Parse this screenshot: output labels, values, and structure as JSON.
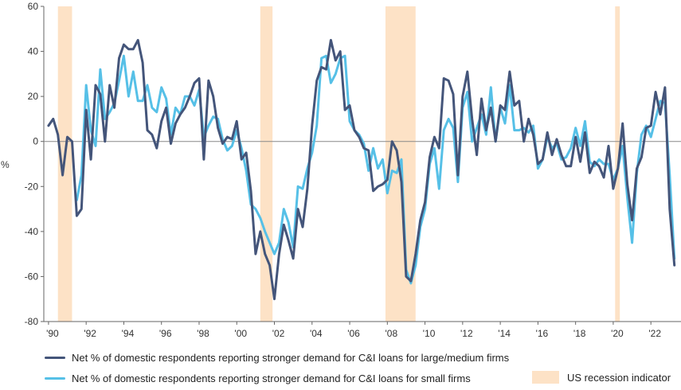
{
  "chart_data": {
    "type": "line",
    "ylabel": "%",
    "ylim": [
      -80,
      60
    ],
    "yticks": [
      -80,
      -60,
      -40,
      -20,
      0,
      20,
      40,
      60
    ],
    "xlim": [
      1989.75,
      2023.6
    ],
    "xticks": [
      {
        "x": 1990,
        "label": "'90"
      },
      {
        "x": 1992,
        "label": "'92"
      },
      {
        "x": 1994,
        "label": "'94"
      },
      {
        "x": 1996,
        "label": "'96"
      },
      {
        "x": 1998,
        "label": "'98"
      },
      {
        "x": 2000,
        "label": "'00"
      },
      {
        "x": 2002,
        "label": "'02"
      },
      {
        "x": 2004,
        "label": "'04"
      },
      {
        "x": 2006,
        "label": "'06"
      },
      {
        "x": 2008,
        "label": "'08"
      },
      {
        "x": 2010,
        "label": "'10"
      },
      {
        "x": 2012,
        "label": "'12"
      },
      {
        "x": 2014,
        "label": "'14"
      },
      {
        "x": 2016,
        "label": "'16"
      },
      {
        "x": 2018,
        "label": "'18"
      },
      {
        "x": 2020,
        "label": "'20"
      },
      {
        "x": 2022,
        "label": "'22"
      }
    ],
    "recessions": [
      [
        1990.5,
        1991.25
      ],
      [
        2001.25,
        2001.9
      ],
      [
        2007.9,
        2009.5
      ],
      [
        2020.1,
        2020.35
      ]
    ],
    "series": [
      {
        "name": "Net % of domestic respondents reporting stronger demand for C&I loans for large/medium firms",
        "color": "#44557a",
        "points": [
          [
            1990.0,
            7
          ],
          [
            1990.25,
            10
          ],
          [
            1990.5,
            3
          ],
          [
            1990.75,
            -15
          ],
          [
            1991.0,
            2
          ],
          [
            1991.25,
            0
          ],
          [
            1991.5,
            -33
          ],
          [
            1991.75,
            -30
          ],
          [
            1992.0,
            14
          ],
          [
            1992.25,
            -8
          ],
          [
            1992.5,
            25
          ],
          [
            1992.75,
            21
          ],
          [
            1993.0,
            0
          ],
          [
            1993.25,
            25
          ],
          [
            1993.5,
            15
          ],
          [
            1993.75,
            37
          ],
          [
            1994.0,
            43
          ],
          [
            1994.25,
            41
          ],
          [
            1994.5,
            41
          ],
          [
            1994.75,
            45
          ],
          [
            1995.0,
            35
          ],
          [
            1995.25,
            5
          ],
          [
            1995.5,
            3
          ],
          [
            1995.75,
            -3
          ],
          [
            1996.0,
            9
          ],
          [
            1996.25,
            15
          ],
          [
            1996.5,
            -1
          ],
          [
            1996.75,
            8
          ],
          [
            1997.0,
            12
          ],
          [
            1997.25,
            15
          ],
          [
            1997.5,
            20
          ],
          [
            1997.75,
            26
          ],
          [
            1998.0,
            28
          ],
          [
            1998.25,
            -8
          ],
          [
            1998.5,
            27
          ],
          [
            1998.75,
            20
          ],
          [
            1999.0,
            6
          ],
          [
            1999.25,
            -1
          ],
          [
            1999.5,
            2
          ],
          [
            1999.75,
            1
          ],
          [
            2000.0,
            9
          ],
          [
            2000.25,
            -8
          ],
          [
            2000.5,
            -5
          ],
          [
            2000.75,
            -22
          ],
          [
            2001.0,
            -50
          ],
          [
            2001.25,
            -40
          ],
          [
            2001.5,
            -50
          ],
          [
            2001.75,
            -55
          ],
          [
            2002.0,
            -70
          ],
          [
            2002.25,
            -50
          ],
          [
            2002.5,
            -37
          ],
          [
            2002.75,
            -44
          ],
          [
            2003.0,
            -52
          ],
          [
            2003.25,
            -30
          ],
          [
            2003.5,
            -38
          ],
          [
            2003.75,
            -21
          ],
          [
            2004.0,
            7
          ],
          [
            2004.25,
            27
          ],
          [
            2004.5,
            33
          ],
          [
            2004.75,
            32
          ],
          [
            2005.0,
            45
          ],
          [
            2005.25,
            36
          ],
          [
            2005.5,
            40
          ],
          [
            2005.75,
            14
          ],
          [
            2006.0,
            16
          ],
          [
            2006.25,
            5
          ],
          [
            2006.5,
            2
          ],
          [
            2006.75,
            -3
          ],
          [
            2007.0,
            -4
          ],
          [
            2007.25,
            -22
          ],
          [
            2007.5,
            -20
          ],
          [
            2007.75,
            -19
          ],
          [
            2008.0,
            -17
          ],
          [
            2008.25,
            0
          ],
          [
            2008.5,
            -4
          ],
          [
            2008.75,
            -18
          ],
          [
            2009.0,
            -60
          ],
          [
            2009.25,
            -62
          ],
          [
            2009.5,
            -50
          ],
          [
            2009.75,
            -35
          ],
          [
            2010.0,
            -27
          ],
          [
            2010.25,
            -7
          ],
          [
            2010.5,
            2
          ],
          [
            2010.75,
            -3
          ],
          [
            2011.0,
            28
          ],
          [
            2011.25,
            27
          ],
          [
            2011.5,
            21
          ],
          [
            2011.75,
            -15
          ],
          [
            2012.0,
            20
          ],
          [
            2012.25,
            31
          ],
          [
            2012.5,
            10
          ],
          [
            2012.75,
            -6
          ],
          [
            2013.0,
            19
          ],
          [
            2013.25,
            5
          ],
          [
            2013.5,
            15
          ],
          [
            2013.75,
            0
          ],
          [
            2014.0,
            16
          ],
          [
            2014.25,
            14
          ],
          [
            2014.5,
            31
          ],
          [
            2014.75,
            16
          ],
          [
            2015.0,
            18
          ],
          [
            2015.25,
            0
          ],
          [
            2015.5,
            10
          ],
          [
            2015.75,
            3
          ],
          [
            2016.0,
            -10
          ],
          [
            2016.25,
            -8
          ],
          [
            2016.5,
            4
          ],
          [
            2016.75,
            -6
          ],
          [
            2017.0,
            1
          ],
          [
            2017.25,
            -6
          ],
          [
            2017.5,
            -11
          ],
          [
            2017.75,
            -11
          ],
          [
            2018.0,
            2
          ],
          [
            2018.25,
            -9
          ],
          [
            2018.5,
            4
          ],
          [
            2018.75,
            -14
          ],
          [
            2019.0,
            -9
          ],
          [
            2019.25,
            -11
          ],
          [
            2019.5,
            -16
          ],
          [
            2019.75,
            -2
          ],
          [
            2020.0,
            -21
          ],
          [
            2020.25,
            -12
          ],
          [
            2020.5,
            8
          ],
          [
            2020.75,
            -19
          ],
          [
            2021.0,
            -35
          ],
          [
            2021.25,
            -12
          ],
          [
            2021.5,
            -7
          ],
          [
            2021.75,
            6
          ],
          [
            2022.0,
            7
          ],
          [
            2022.25,
            22
          ],
          [
            2022.5,
            12
          ],
          [
            2022.75,
            24
          ],
          [
            2023.0,
            -30
          ],
          [
            2023.25,
            -55
          ]
        ]
      },
      {
        "name": "Net % of domestic respondents reporting stronger demand for C&I loans for small firms",
        "color": "#56c0e7",
        "points": [
          [
            1991.5,
            -26
          ],
          [
            1991.75,
            -15
          ],
          [
            1992.0,
            25
          ],
          [
            1992.25,
            5
          ],
          [
            1992.5,
            -2
          ],
          [
            1992.75,
            32
          ],
          [
            1993.0,
            10
          ],
          [
            1993.25,
            13
          ],
          [
            1993.5,
            17
          ],
          [
            1993.75,
            27
          ],
          [
            1994.0,
            38
          ],
          [
            1994.25,
            20
          ],
          [
            1994.5,
            31
          ],
          [
            1994.75,
            18
          ],
          [
            1995.0,
            18
          ],
          [
            1995.25,
            25
          ],
          [
            1995.5,
            15
          ],
          [
            1995.75,
            13
          ],
          [
            1996.0,
            24
          ],
          [
            1996.25,
            19
          ],
          [
            1996.5,
            3
          ],
          [
            1996.75,
            15
          ],
          [
            1997.0,
            12
          ],
          [
            1997.25,
            20
          ],
          [
            1997.5,
            20
          ],
          [
            1997.75,
            16
          ],
          [
            1998.0,
            23
          ],
          [
            1998.25,
            2
          ],
          [
            1998.5,
            7
          ],
          [
            1998.75,
            11
          ],
          [
            1999.0,
            10
          ],
          [
            1999.25,
            1
          ],
          [
            1999.5,
            -4
          ],
          [
            1999.75,
            -2
          ],
          [
            2000.0,
            5
          ],
          [
            2000.25,
            -3
          ],
          [
            2000.5,
            -13
          ],
          [
            2000.75,
            -28
          ],
          [
            2001.0,
            -30
          ],
          [
            2001.25,
            -34
          ],
          [
            2001.5,
            -40
          ],
          [
            2001.75,
            -45
          ],
          [
            2002.0,
            -50
          ],
          [
            2002.25,
            -45
          ],
          [
            2002.5,
            -30
          ],
          [
            2002.75,
            -36
          ],
          [
            2003.0,
            -47
          ],
          [
            2003.25,
            -20
          ],
          [
            2003.5,
            -21
          ],
          [
            2003.75,
            -12
          ],
          [
            2004.0,
            -5
          ],
          [
            2004.25,
            7
          ],
          [
            2004.5,
            37
          ],
          [
            2004.75,
            38
          ],
          [
            2005.0,
            26
          ],
          [
            2005.25,
            30
          ],
          [
            2005.5,
            37
          ],
          [
            2005.75,
            38
          ],
          [
            2006.0,
            9
          ],
          [
            2006.25,
            5
          ],
          [
            2006.5,
            3
          ],
          [
            2006.75,
            -1
          ],
          [
            2007.0,
            -13
          ],
          [
            2007.25,
            -3
          ],
          [
            2007.5,
            -12
          ],
          [
            2007.75,
            -8
          ],
          [
            2008.0,
            -23
          ],
          [
            2008.25,
            -13
          ],
          [
            2008.5,
            -14
          ],
          [
            2008.75,
            -8
          ],
          [
            2009.0,
            -57
          ],
          [
            2009.25,
            -63
          ],
          [
            2009.5,
            -55
          ],
          [
            2009.75,
            -38
          ],
          [
            2010.0,
            -30
          ],
          [
            2010.25,
            -10
          ],
          [
            2010.5,
            -3
          ],
          [
            2010.75,
            -21
          ],
          [
            2011.0,
            5
          ],
          [
            2011.25,
            10
          ],
          [
            2011.5,
            6
          ],
          [
            2011.75,
            -18
          ],
          [
            2012.0,
            15
          ],
          [
            2012.25,
            22
          ],
          [
            2012.5,
            0
          ],
          [
            2012.75,
            6
          ],
          [
            2013.0,
            12
          ],
          [
            2013.25,
            3
          ],
          [
            2013.5,
            24
          ],
          [
            2013.75,
            0
          ],
          [
            2014.0,
            15
          ],
          [
            2014.25,
            8
          ],
          [
            2014.5,
            25
          ],
          [
            2014.75,
            5
          ],
          [
            2015.0,
            5
          ],
          [
            2015.25,
            6
          ],
          [
            2015.5,
            4
          ],
          [
            2015.75,
            7
          ],
          [
            2016.0,
            -12
          ],
          [
            2016.25,
            -8
          ],
          [
            2016.5,
            2
          ],
          [
            2016.75,
            -3
          ],
          [
            2017.0,
            -1
          ],
          [
            2017.25,
            -8
          ],
          [
            2017.5,
            -7
          ],
          [
            2017.75,
            -3
          ],
          [
            2018.0,
            6
          ],
          [
            2018.25,
            -2
          ],
          [
            2018.5,
            9
          ],
          [
            2018.75,
            -9
          ],
          [
            2019.0,
            -11
          ],
          [
            2019.25,
            -8
          ],
          [
            2019.5,
            -10
          ],
          [
            2019.75,
            -10
          ],
          [
            2020.0,
            -17
          ],
          [
            2020.25,
            -12
          ],
          [
            2020.5,
            -2
          ],
          [
            2020.75,
            -25
          ],
          [
            2021.0,
            -45
          ],
          [
            2021.25,
            -14
          ],
          [
            2021.5,
            3
          ],
          [
            2021.75,
            7
          ],
          [
            2022.0,
            2
          ],
          [
            2022.25,
            10
          ],
          [
            2022.5,
            18
          ],
          [
            2022.75,
            17
          ],
          [
            2023.0,
            -15
          ],
          [
            2023.25,
            -52
          ]
        ]
      }
    ],
    "legend": {
      "placement": "bottom",
      "recession_label": "US recession indicator",
      "recession_color": "#fde2c6"
    }
  }
}
